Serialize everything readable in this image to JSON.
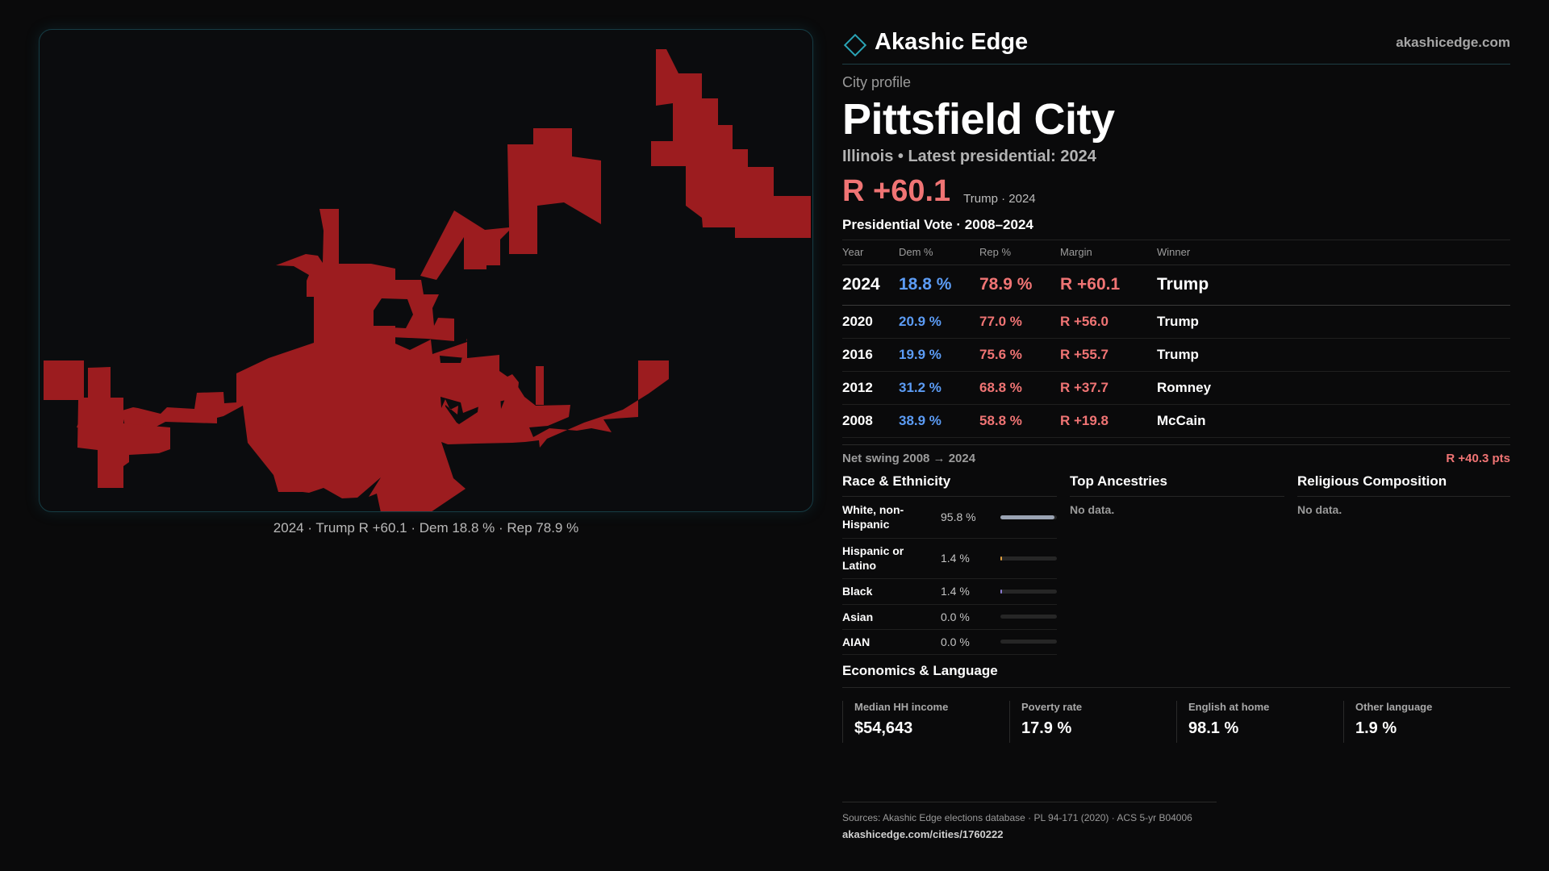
{
  "brand": {
    "name": "Akashic Edge",
    "site": "akashicedge.com",
    "mark_icon": "diamond-outline-icon",
    "accent": "#2aa3b5"
  },
  "profile": {
    "kicker": "City profile",
    "city": "Pittsfield City",
    "subtitle": "Illinois • Latest presidential: 2024",
    "margin": "R +60.1",
    "margin_note": "Trump · 2024"
  },
  "map": {
    "fill_color": "#9c1c1f",
    "caption": "2024 · Trump R +60.1 · Dem 18.8 % · Rep 78.9 %"
  },
  "votes": {
    "title": "Presidential Vote · 2008–2024",
    "headers": {
      "year": "Year",
      "dem": "Dem %",
      "rep": "Rep %",
      "margin": "Margin",
      "winner": "Winner"
    },
    "rows": [
      {
        "year": "2024",
        "dem": "18.8 %",
        "rep": "78.9 %",
        "margin": "R +60.1",
        "winner": "Trump"
      },
      {
        "year": "2020",
        "dem": "20.9 %",
        "rep": "77.0 %",
        "margin": "R +56.0",
        "winner": "Trump"
      },
      {
        "year": "2016",
        "dem": "19.9 %",
        "rep": "75.6 %",
        "margin": "R +55.7",
        "winner": "Trump"
      },
      {
        "year": "2012",
        "dem": "31.2 %",
        "rep": "68.8 %",
        "margin": "R +37.7",
        "winner": "Romney"
      },
      {
        "year": "2008",
        "dem": "38.9 %",
        "rep": "58.8 %",
        "margin": "R +19.8",
        "winner": "McCain"
      }
    ],
    "dem_color": "#5c9cf5",
    "rep_color": "#f07474"
  },
  "swing": {
    "label": "Net swing 2008 → 2024",
    "value": "R +40.3 pts"
  },
  "race": {
    "title": "Race & Ethnicity",
    "rows": [
      {
        "label": "White, non-Hispanic",
        "pct": "95.8 %",
        "share": 0.958,
        "color": "#9aa3b3"
      },
      {
        "label": "Hispanic or Latino",
        "pct": "1.4 %",
        "share": 0.014,
        "color": "#e0a040"
      },
      {
        "label": "Black",
        "pct": "1.4 %",
        "share": 0.014,
        "color": "#8a7ad0"
      },
      {
        "label": "Asian",
        "pct": "0.0 %",
        "share": 0.0,
        "color": "#40b080"
      },
      {
        "label": "AIAN",
        "pct": "0.0 %",
        "share": 0.0,
        "color": "#c07050"
      }
    ]
  },
  "ancestries": {
    "title": "Top Ancestries",
    "empty": "No data."
  },
  "religion": {
    "title": "Religious Composition",
    "empty": "No data."
  },
  "economics": {
    "title": "Economics & Language",
    "cells": [
      {
        "label": "Median HH income",
        "value": "$54,643"
      },
      {
        "label": "Poverty rate",
        "value": "17.9 %"
      },
      {
        "label": "English at home",
        "value": "98.1 %"
      },
      {
        "label": "Other language",
        "value": "1.9 %"
      }
    ]
  },
  "sources": {
    "line": "Sources: Akashic Edge elections database · PL 94-171 (2020) · ACS 5-yr B04006",
    "url": "akashicedge.com/cities/1760222"
  }
}
